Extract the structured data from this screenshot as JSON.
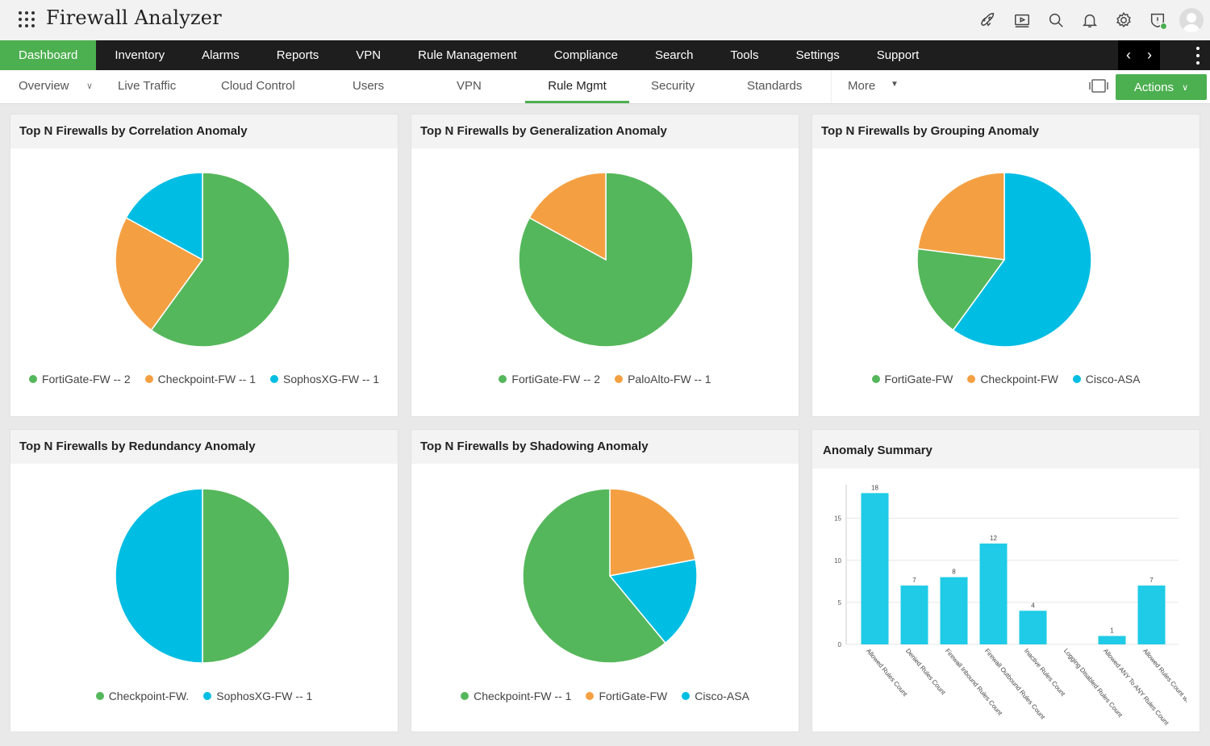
{
  "app": {
    "title": "Firewall Analyzer"
  },
  "top_icons": [
    "rocket-icon",
    "video-icon",
    "search-icon",
    "bell-icon",
    "gear-icon",
    "shield-alert-icon",
    "user-avatar-icon"
  ],
  "main_nav": {
    "items": [
      "Dashboard",
      "Inventory",
      "Alarms",
      "Reports",
      "VPN",
      "Rule Management",
      "Compliance",
      "Search",
      "Tools",
      "Settings",
      "Support"
    ],
    "active": "Dashboard"
  },
  "sub_nav": {
    "overview": "Overview",
    "live_traffic": "Live Traffic",
    "cloud_control": "Cloud Control",
    "users": "Users",
    "vpn": "VPN",
    "rule_mgmt": "Rule Mgmt",
    "security": "Security",
    "standards": "Standards",
    "more": "More",
    "active": "Rule Mgmt"
  },
  "actions": {
    "label": "Actions"
  },
  "colors": {
    "green": "#55b75b",
    "orange": "#f4a042",
    "cyan": "#00bde3",
    "accent": "#4caf50",
    "bar": "#1fcbe6"
  },
  "widgets": {
    "correlation": {
      "title": "Top N Firewalls by Correlation Anomaly",
      "legend": [
        "FortiGate-FW -- 2",
        "Checkpoint-FW -- 1",
        "SophosXG-FW -- 1"
      ]
    },
    "generalization": {
      "title": "Top N Firewalls by Generalization Anomaly",
      "legend": [
        "FortiGate-FW -- 2",
        "PaloAlto-FW -- 1"
      ]
    },
    "grouping": {
      "title": "Top N Firewalls by Grouping Anomaly",
      "legend": [
        "FortiGate-FW",
        "Checkpoint-FW",
        "Cisco-ASA"
      ]
    },
    "redundancy": {
      "title": "Top N Firewalls by Redundancy Anomaly",
      "legend": [
        "Checkpoint-FW.",
        "SophosXG-FW -- 1"
      ]
    },
    "shadowing": {
      "title": "Top N Firewalls by Shadowing Anomaly",
      "legend": [
        "Checkpoint-FW -- 1",
        "FortiGate-FW",
        "Cisco-ASA"
      ]
    },
    "summary": {
      "title": "Anomaly Summary"
    }
  },
  "chart_data": [
    {
      "type": "pie",
      "title": "Top N Firewalls by Correlation Anomaly",
      "slices": [
        {
          "label": "FortiGate-FW -- 2",
          "value": 60,
          "color": "#55b75b"
        },
        {
          "label": "Checkpoint-FW -- 1",
          "value": 23,
          "color": "#f4a042"
        },
        {
          "label": "SophosXG-FW -- 1",
          "value": 17,
          "color": "#00bde3"
        }
      ]
    },
    {
      "type": "pie",
      "title": "Top N Firewalls by Generalization Anomaly",
      "slices": [
        {
          "label": "FortiGate-FW -- 2",
          "value": 83,
          "color": "#55b75b"
        },
        {
          "label": "PaloAlto-FW -- 1",
          "value": 17,
          "color": "#f4a042"
        }
      ]
    },
    {
      "type": "pie",
      "title": "Top N Firewalls by Grouping Anomaly",
      "slices": [
        {
          "label": "Cisco-ASA",
          "value": 60,
          "color": "#00bde3"
        },
        {
          "label": "FortiGate-FW",
          "value": 17,
          "color": "#55b75b"
        },
        {
          "label": "Checkpoint-FW",
          "value": 23,
          "color": "#f4a042"
        }
      ]
    },
    {
      "type": "pie",
      "title": "Top N Firewalls by Redundancy Anomaly",
      "slices": [
        {
          "label": "Checkpoint-FW.",
          "value": 50,
          "color": "#55b75b"
        },
        {
          "label": "SophosXG-FW -- 1",
          "value": 50,
          "color": "#00bde3"
        }
      ]
    },
    {
      "type": "pie",
      "title": "Top N Firewalls by Shadowing Anomaly",
      "slices": [
        {
          "label": "FortiGate-FW",
          "value": 22,
          "color": "#f4a042"
        },
        {
          "label": "Cisco-ASA",
          "value": 17,
          "color": "#00bde3"
        },
        {
          "label": "Checkpoint-FW -- 1",
          "value": 61,
          "color": "#55b75b"
        }
      ]
    },
    {
      "type": "bar",
      "title": "Anomaly Summary",
      "categories": [
        "Allowed Rules Count",
        "Denied Rules Count",
        "Firewall Inbound Rules Count",
        "Firewall Outbound Rules Count",
        "Inactive Rules Count",
        "Logging Disabled Rules Count",
        "Allowed ANY To ANY Rules Count",
        "Allowed Rules Count with AN..."
      ],
      "values": [
        18,
        7,
        8,
        12,
        4,
        0,
        1,
        7
      ],
      "data_labels": [
        "18",
        "7",
        "8",
        "12",
        "4",
        "",
        "1",
        "7"
      ],
      "yticks": [
        0,
        5,
        10,
        15
      ],
      "ylim": [
        0,
        19
      ],
      "grid": true
    }
  ]
}
